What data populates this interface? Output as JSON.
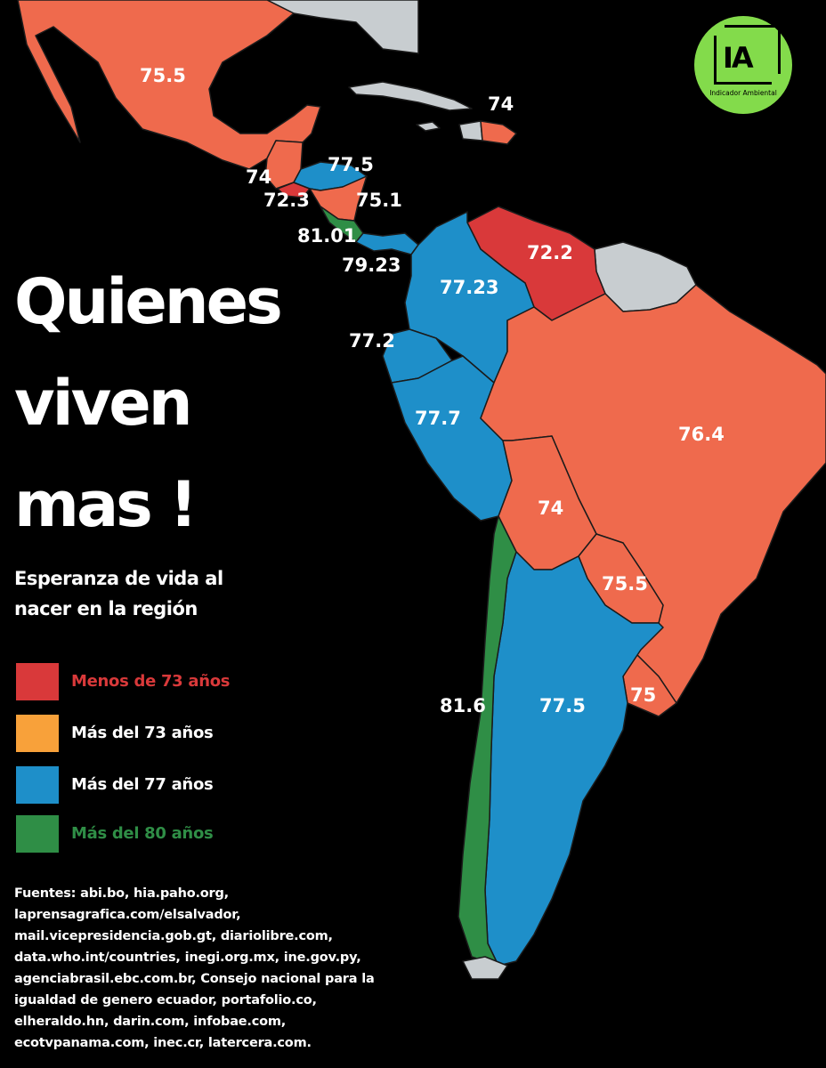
{
  "title_lines": [
    "Quienes",
    "viven",
    "mas !"
  ],
  "subtitle_lines": [
    "Esperanza de vida al",
    "nacer en la región"
  ],
  "legend": [
    {
      "label": "Menos de 73 años",
      "color": "#d9393a",
      "text_color": "#d9393a"
    },
    {
      "label": "Más del 73 años",
      "color": "#f8a13a",
      "text_color": "#ffffff"
    },
    {
      "label": "Más del 77 años",
      "color": "#1e8fc9",
      "text_color": "#ffffff"
    },
    {
      "label": "Más del 80 años",
      "color": "#2f8e46",
      "text_color": "#2f8e46"
    }
  ],
  "sources_lines": [
    "Fuentes:  abi.bo, hia.paho.org,",
    "laprensagrafica.com/elsalvador,",
    "mail.vicepresidencia.gob.gt,  diariolibre.com,",
    "data.who.int/countries, inegi.org.mx, ine.gov.py,",
    "agenciabrasil.ebc.com.br, Consejo nacional para la",
    "igualdad de genero ecuador, portafolio.co,",
    "elheraldo.hn, darin.com, infobae.com,",
    "ecotvpanama.com, inec.cr, latercera.com."
  ],
  "logo": {
    "mark": "IA",
    "text": "Indicador Ambiental",
    "color": "#83db4b"
  },
  "map_colors": {
    "red": "#d9393a",
    "salmon": "#ef6a4d",
    "blue": "#1e8fc9",
    "green": "#2f8e46",
    "gray": "#c8cdd0"
  },
  "countries": [
    {
      "name": "México",
      "value": "75.5",
      "color": "#ef6a4d"
    },
    {
      "name": "República Dominicana",
      "value": "74",
      "color": "#ef6a4d"
    },
    {
      "name": "Guatemala",
      "value": "74",
      "color": "#ef6a4d"
    },
    {
      "name": "Honduras",
      "value": "77.5",
      "color": "#1e8fc9"
    },
    {
      "name": "El Salvador",
      "value": "72.3",
      "color": "#d9393a"
    },
    {
      "name": "Nicaragua",
      "value": "75.1",
      "color": "#ef6a4d"
    },
    {
      "name": "Costa Rica",
      "value": "81.01",
      "color": "#2f8e46"
    },
    {
      "name": "Panamá",
      "value": "79.23",
      "color": "#1e8fc9"
    },
    {
      "name": "Venezuela",
      "value": "72.2",
      "color": "#d9393a"
    },
    {
      "name": "Colombia",
      "value": "77.23",
      "color": "#1e8fc9"
    },
    {
      "name": "Ecuador",
      "value": "77.2",
      "color": "#1e8fc9"
    },
    {
      "name": "Perú",
      "value": "77.7",
      "color": "#1e8fc9"
    },
    {
      "name": "Brasil",
      "value": "76.4",
      "color": "#ef6a4d"
    },
    {
      "name": "Bolivia",
      "value": "74",
      "color": "#ef6a4d"
    },
    {
      "name": "Paraguay",
      "value": "75.5",
      "color": "#ef6a4d"
    },
    {
      "name": "Uruguay",
      "value": "75",
      "color": "#ef6a4d"
    },
    {
      "name": "Chile",
      "value": "81.6",
      "color": "#2f8e46"
    },
    {
      "name": "Argentina",
      "value": "77.5",
      "color": "#1e8fc9"
    }
  ]
}
